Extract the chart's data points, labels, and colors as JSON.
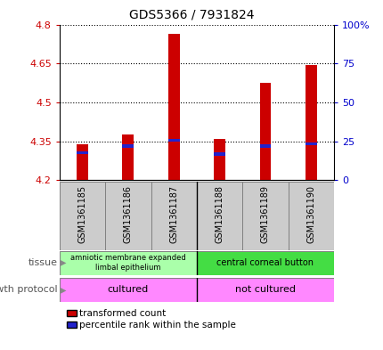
{
  "title": "GDS5366 / 7931824",
  "samples": [
    "GSM1361185",
    "GSM1361186",
    "GSM1361187",
    "GSM1361188",
    "GSM1361189",
    "GSM1361190"
  ],
  "transformed_counts": [
    4.34,
    4.375,
    4.765,
    4.36,
    4.575,
    4.645
  ],
  "percentile_values": [
    4.3,
    4.325,
    4.348,
    4.295,
    4.325,
    4.335
  ],
  "percentile_heights": [
    0.012,
    0.012,
    0.012,
    0.012,
    0.012,
    0.012
  ],
  "base": 4.2,
  "ylim": [
    4.2,
    4.8
  ],
  "yticks": [
    4.2,
    4.35,
    4.5,
    4.65,
    4.8
  ],
  "ytick_labels_left": [
    "4.2",
    "4.35",
    "4.5",
    "4.65",
    "4.8"
  ],
  "ytick_labels_right": [
    "0",
    "25",
    "50",
    "75",
    "100%"
  ],
  "bar_color": "#CC0000",
  "percentile_color": "#2222CC",
  "grid_color": "#000000",
  "left_axis_color": "#CC0000",
  "right_axis_color": "#0000CC",
  "tissue_label": "tissue",
  "growth_label": "growth protocol",
  "tissue_group1_label": "amniotic membrane expanded\nlimbal epithelium",
  "tissue_group1_color": "#AAFFAA",
  "tissue_group2_label": "central corneal button",
  "tissue_group2_color": "#44DD44",
  "growth_group1_label": "cultured",
  "growth_group2_label": "not cultured",
  "growth_color": "#FF88FF",
  "sample_bg_color": "#CCCCCC",
  "legend_items": [
    {
      "label": "transformed count",
      "color": "#CC0000"
    },
    {
      "label": "percentile rank within the sample",
      "color": "#2222CC"
    }
  ]
}
